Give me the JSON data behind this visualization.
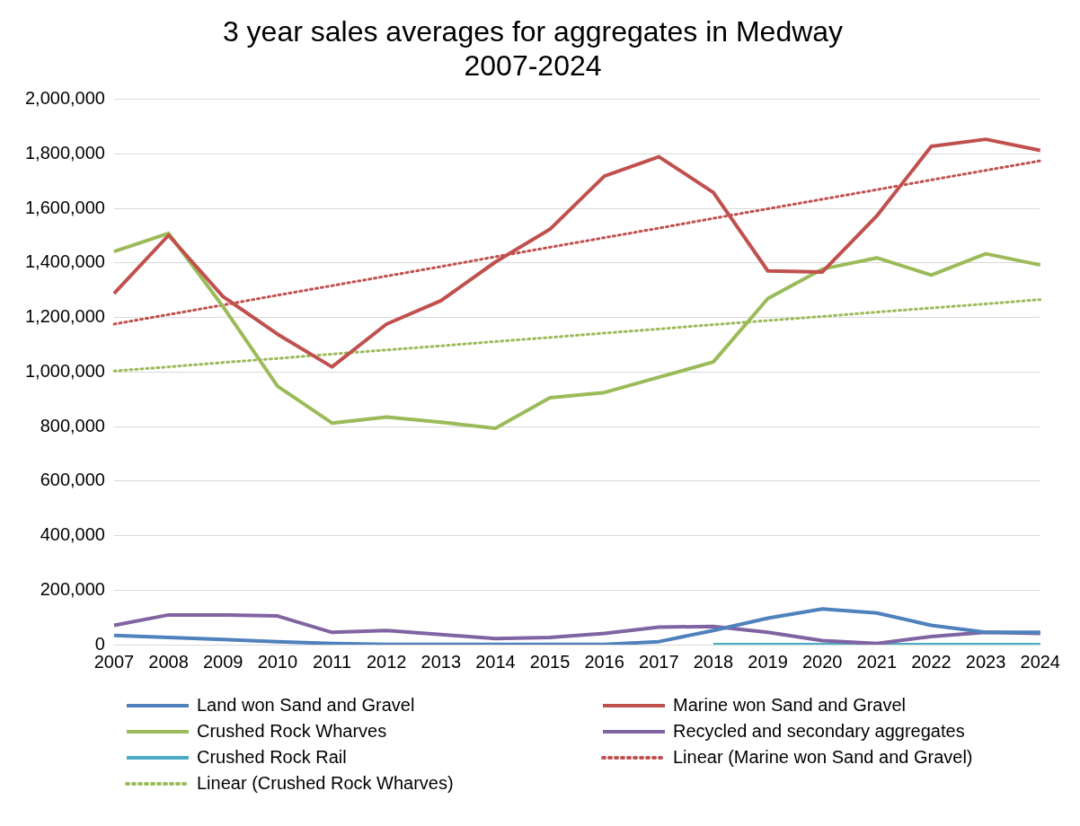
{
  "chart_data": {
    "type": "line",
    "title": "3 year sales averages for aggregates in Medway\n2007-2024",
    "categories": [
      "2007",
      "2008",
      "2009",
      "2010",
      "2011",
      "2012",
      "2013",
      "2014",
      "2015",
      "2016",
      "2017",
      "2018",
      "2019",
      "2020",
      "2021",
      "2022",
      "2023",
      "2024"
    ],
    "series": [
      {
        "name": "Land won Sand and Gravel",
        "color": "#4f81bd",
        "values": [
          34000,
          26000,
          19000,
          11000,
          4000,
          1000,
          1000,
          1000,
          1000,
          1000,
          11000,
          52000,
          97000,
          131000,
          116000,
          71000,
          45000,
          45000
        ]
      },
      {
        "name": "Marine won Sand and Gravel",
        "color": "#c0504d",
        "values": [
          1288000,
          1502000,
          1277000,
          1139000,
          1019000,
          1176000,
          1262000,
          1404000,
          1524000,
          1719000,
          1790000,
          1659000,
          1371000,
          1367000,
          1573000,
          1828000,
          1854000,
          1813000
        ]
      },
      {
        "name": "Crushed Rock Wharves",
        "color": "#9bbb59",
        "values": [
          1442000,
          1509000,
          1240000,
          948000,
          813000,
          835000,
          816000,
          794000,
          906000,
          925000,
          981000,
          1037000,
          1270000,
          1378000,
          1419000,
          1356000,
          1434000,
          1393000
        ]
      },
      {
        "name": "Recycled and secondary aggregates",
        "color": "#8064a2",
        "values": [
          71000,
          109000,
          109000,
          105000,
          45000,
          52000,
          37000,
          22000,
          26000,
          41000,
          64000,
          67000,
          45000,
          15000,
          4000,
          30000,
          45000,
          41000
        ]
      },
      {
        "name": "Crushed Rock Rail",
        "color": "#4bacc6",
        "values": [
          null,
          null,
          null,
          null,
          null,
          null,
          null,
          null,
          null,
          null,
          null,
          0,
          0,
          0,
          0,
          0,
          0,
          0
        ]
      },
      {
        "name": "Linear (Marine won Sand and Gravel)",
        "color": "#c0504d",
        "type": "line",
        "line_style": "dotted",
        "values": [
          1176000,
          1211000,
          1246000,
          1282000,
          1317000,
          1352000,
          1387000,
          1423000,
          1458000,
          1493000,
          1528000,
          1564000,
          1599000,
          1634000,
          1669000,
          1705000,
          1740000,
          1775000
        ]
      },
      {
        "name": "Linear (Crushed Rock Wharves)",
        "color": "#9bbb59",
        "type": "line",
        "line_style": "dotted",
        "values": [
          1004000,
          1019000,
          1035000,
          1050000,
          1066000,
          1081000,
          1096000,
          1112000,
          1127000,
          1143000,
          1158000,
          1174000,
          1189000,
          1204000,
          1220000,
          1235000,
          1250000,
          1266000
        ]
      }
    ],
    "ylim": [
      0,
      2000000
    ],
    "yticks": [
      0,
      {
        "value": 200000,
        "label": "200,000"
      },
      {
        "value": 400000,
        "label": "400,000"
      },
      {
        "value": 600000,
        "label": "600,000"
      },
      {
        "value": 800000,
        "label": "800,000"
      },
      {
        "value": 1000000,
        "label": "1,000,000"
      },
      {
        "value": 1200000,
        "label": "1,200,000"
      },
      {
        "value": 1400000,
        "label": "1,400,000"
      },
      {
        "value": 1600000,
        "label": "1,600,000"
      },
      {
        "value": 1800000,
        "label": "1,800,000"
      },
      {
        "value": 2000000,
        "label": "2,000,000"
      }
    ],
    "grid": "y",
    "legend": "bottom",
    "marker": "none",
    "line_style": "solid"
  }
}
